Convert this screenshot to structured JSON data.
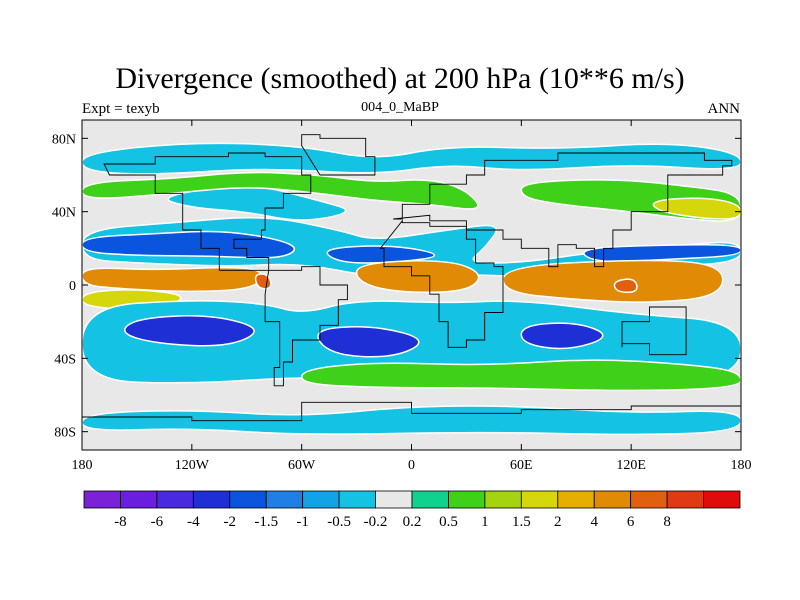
{
  "title": "Divergence (smoothed) at 200 hPa (10**6 m/s)",
  "left_label": "Expt = texyb",
  "center_label": "004_0_MaBP",
  "right_label": "ANN",
  "chart_data": {
    "type": "heatmap",
    "title": "Divergence (smoothed) at 200 hPa (10**6 m/s)",
    "subtitle_left": "Expt = texyb",
    "subtitle_center": "004_0_MaBP",
    "subtitle_right": "ANN",
    "x_ticks": [
      {
        "lon": -180,
        "label": "180"
      },
      {
        "lon": -120,
        "label": "120W"
      },
      {
        "lon": -60,
        "label": "60W"
      },
      {
        "lon": 0,
        "label": "0"
      },
      {
        "lon": 60,
        "label": "60E"
      },
      {
        "lon": 120,
        "label": "120E"
      },
      {
        "lon": 180,
        "label": "180"
      }
    ],
    "y_ticks": [
      {
        "lat": 80,
        "label": "80N"
      },
      {
        "lat": 40,
        "label": "40N"
      },
      {
        "lat": 0,
        "label": "0"
      },
      {
        "lat": -40,
        "label": "40S"
      },
      {
        "lat": -80,
        "label": "80S"
      }
    ],
    "xlim": [
      -180,
      180
    ],
    "ylim": [
      -90,
      90
    ],
    "colorbar": {
      "colors": [
        "#7a22d6",
        "#6a1fe0",
        "#4a2ae0",
        "#1f2fd6",
        "#0b55de",
        "#1f7fe4",
        "#10a3e6",
        "#14c2e4",
        "#e8e8e8",
        "#0fd28f",
        "#3fd119",
        "#a5d310",
        "#d6d60c",
        "#e6ae00",
        "#e08a06",
        "#e06010",
        "#e03a14",
        "#e00c0c"
      ],
      "labels": [
        "-8",
        "-6",
        "-4",
        "-2",
        "-1.5",
        "-1",
        "-0.5",
        "-0.2",
        "0.2",
        "0.5",
        "1",
        "1.5",
        "2",
        "4",
        "6",
        "8"
      ]
    },
    "regions": [
      {
        "level": "-0.5",
        "color": "#14c2e4",
        "points": [
          [
            -180,
            72
          ],
          [
            -120,
            78
          ],
          [
            -60,
            76
          ],
          [
            -20,
            68
          ],
          [
            20,
            76
          ],
          [
            80,
            74
          ],
          [
            140,
            78
          ],
          [
            180,
            72
          ],
          [
            180,
            62
          ],
          [
            120,
            66
          ],
          [
            60,
            62
          ],
          [
            20,
            66
          ],
          [
            -20,
            60
          ],
          [
            -80,
            64
          ],
          [
            -140,
            60
          ],
          [
            -180,
            62
          ]
        ]
      },
      {
        "level": "-0.5",
        "color": "#14c2e4",
        "points": [
          [
            -140,
            48
          ],
          [
            -90,
            56
          ],
          [
            -50,
            46
          ],
          [
            -30,
            40
          ],
          [
            -60,
            34
          ],
          [
            -90,
            40
          ],
          [
            -120,
            42
          ]
        ]
      },
      {
        "level": "1",
        "color": "#3fd119",
        "points": [
          [
            -180,
            56
          ],
          [
            -130,
            58
          ],
          [
            -90,
            62
          ],
          [
            -50,
            60
          ],
          [
            -20,
            56
          ],
          [
            10,
            58
          ],
          [
            30,
            52
          ],
          [
            40,
            40
          ],
          [
            10,
            44
          ],
          [
            -20,
            46
          ],
          [
            -50,
            50
          ],
          [
            -90,
            54
          ],
          [
            -130,
            50
          ],
          [
            -180,
            46
          ]
        ]
      },
      {
        "level": "1",
        "color": "#3fd119",
        "points": [
          [
            60,
            56
          ],
          [
            110,
            58
          ],
          [
            150,
            54
          ],
          [
            180,
            50
          ],
          [
            180,
            34
          ],
          [
            150,
            36
          ],
          [
            120,
            40
          ],
          [
            80,
            44
          ],
          [
            60,
            48
          ]
        ]
      },
      {
        "level": "2",
        "color": "#d6d60c",
        "points": [
          [
            130,
            46
          ],
          [
            160,
            48
          ],
          [
            180,
            44
          ],
          [
            180,
            36
          ],
          [
            160,
            36
          ],
          [
            135,
            40
          ]
        ]
      },
      {
        "level": "-0.5",
        "color": "#14c2e4",
        "points": [
          [
            -180,
            30
          ],
          [
            -130,
            34
          ],
          [
            -80,
            38
          ],
          [
            -40,
            30
          ],
          [
            -20,
            24
          ],
          [
            20,
            30
          ],
          [
            50,
            34
          ],
          [
            40,
            20
          ],
          [
            30,
            12
          ],
          [
            60,
            12
          ],
          [
            100,
            18
          ],
          [
            150,
            22
          ],
          [
            180,
            24
          ],
          [
            180,
            12
          ],
          [
            130,
            10
          ],
          [
            80,
            4
          ],
          [
            20,
            6
          ],
          [
            -20,
            4
          ],
          [
            -60,
            12
          ],
          [
            -100,
            10
          ],
          [
            -150,
            12
          ],
          [
            -180,
            14
          ]
        ]
      },
      {
        "level": "-1.5",
        "color": "#0b55de",
        "points": [
          [
            -180,
            26
          ],
          [
            -140,
            28
          ],
          [
            -100,
            30
          ],
          [
            -60,
            22
          ],
          [
            -70,
            14
          ],
          [
            -110,
            16
          ],
          [
            -150,
            16
          ],
          [
            -180,
            18
          ]
        ]
      },
      {
        "level": "-1.5",
        "color": "#0b55de",
        "points": [
          [
            -50,
            20
          ],
          [
            -10,
            22
          ],
          [
            20,
            16
          ],
          [
            -10,
            12
          ],
          [
            -40,
            12
          ]
        ]
      },
      {
        "level": "-1.5",
        "color": "#0b55de",
        "points": [
          [
            90,
            20
          ],
          [
            140,
            22
          ],
          [
            180,
            22
          ],
          [
            180,
            16
          ],
          [
            140,
            14
          ],
          [
            100,
            12
          ]
        ]
      },
      {
        "level": "4",
        "color": "#e08a06",
        "points": [
          [
            -180,
            10
          ],
          [
            -140,
            8
          ],
          [
            -100,
            10
          ],
          [
            -80,
            8
          ],
          [
            -85,
            -2
          ],
          [
            -120,
            -4
          ],
          [
            -160,
            -2
          ],
          [
            -180,
            0
          ]
        ]
      },
      {
        "level": "6",
        "color": "#e06010",
        "points": [
          [
            -86,
            6
          ],
          [
            -78,
            6
          ],
          [
            -76,
            -2
          ],
          [
            -84,
            -2
          ]
        ]
      },
      {
        "level": "4",
        "color": "#e08a06",
        "points": [
          [
            -30,
            12
          ],
          [
            20,
            14
          ],
          [
            40,
            6
          ],
          [
            30,
            -4
          ],
          [
            -10,
            -4
          ],
          [
            -30,
            2
          ]
        ]
      },
      {
        "level": "4",
        "color": "#e08a06",
        "points": [
          [
            50,
            10
          ],
          [
            120,
            14
          ],
          [
            170,
            12
          ],
          [
            170,
            -6
          ],
          [
            130,
            -10
          ],
          [
            90,
            -8
          ],
          [
            50,
            -4
          ]
        ]
      },
      {
        "level": "6",
        "color": "#e06010",
        "points": [
          [
            110,
            2
          ],
          [
            122,
            4
          ],
          [
            124,
            -4
          ],
          [
            112,
            -4
          ]
        ]
      },
      {
        "level": "2",
        "color": "#d6d60c",
        "points": [
          [
            -180,
            -4
          ],
          [
            -150,
            -2
          ],
          [
            -120,
            -6
          ],
          [
            -140,
            -14
          ],
          [
            -180,
            -12
          ]
        ]
      },
      {
        "level": "-0.5",
        "color": "#14c2e4",
        "points": [
          [
            -180,
            -12
          ],
          [
            -120,
            -8
          ],
          [
            -80,
            -10
          ],
          [
            -60,
            -16
          ],
          [
            -30,
            -8
          ],
          [
            20,
            -10
          ],
          [
            60,
            -8
          ],
          [
            120,
            -16
          ],
          [
            180,
            -20
          ],
          [
            180,
            -50
          ],
          [
            120,
            -56
          ],
          [
            60,
            -54
          ],
          [
            0,
            -52
          ],
          [
            -60,
            -50
          ],
          [
            -120,
            -54
          ],
          [
            -180,
            -52
          ]
        ]
      },
      {
        "level": "-2",
        "color": "#1f2fd6",
        "points": [
          [
            -150,
            -18
          ],
          [
            -110,
            -16
          ],
          [
            -80,
            -24
          ],
          [
            -100,
            -34
          ],
          [
            -140,
            -32
          ],
          [
            -160,
            -26
          ]
        ]
      },
      {
        "level": "-2",
        "color": "#1f2fd6",
        "points": [
          [
            -55,
            -24
          ],
          [
            -20,
            -22
          ],
          [
            10,
            -30
          ],
          [
            -10,
            -40
          ],
          [
            -45,
            -38
          ]
        ]
      },
      {
        "level": "-2",
        "color": "#1f2fd6",
        "points": [
          [
            60,
            -22
          ],
          [
            90,
            -20
          ],
          [
            110,
            -28
          ],
          [
            85,
            -36
          ],
          [
            60,
            -32
          ]
        ]
      },
      {
        "level": "1",
        "color": "#3fd119",
        "points": [
          [
            -60,
            -46
          ],
          [
            -20,
            -42
          ],
          [
            40,
            -44
          ],
          [
            100,
            -40
          ],
          [
            160,
            -44
          ],
          [
            180,
            -48
          ],
          [
            180,
            -56
          ],
          [
            120,
            -58
          ],
          [
            40,
            -56
          ],
          [
            -20,
            -56
          ],
          [
            -60,
            -54
          ]
        ]
      },
      {
        "level": "-0.5",
        "color": "#14c2e4",
        "points": [
          [
            -180,
            -70
          ],
          [
            -120,
            -68
          ],
          [
            -60,
            -72
          ],
          [
            0,
            -66
          ],
          [
            60,
            -66
          ],
          [
            120,
            -70
          ],
          [
            180,
            -68
          ],
          [
            180,
            -80
          ],
          [
            120,
            -82
          ],
          [
            40,
            -80
          ],
          [
            -60,
            -82
          ],
          [
            -120,
            -78
          ],
          [
            -180,
            -80
          ]
        ]
      }
    ]
  }
}
